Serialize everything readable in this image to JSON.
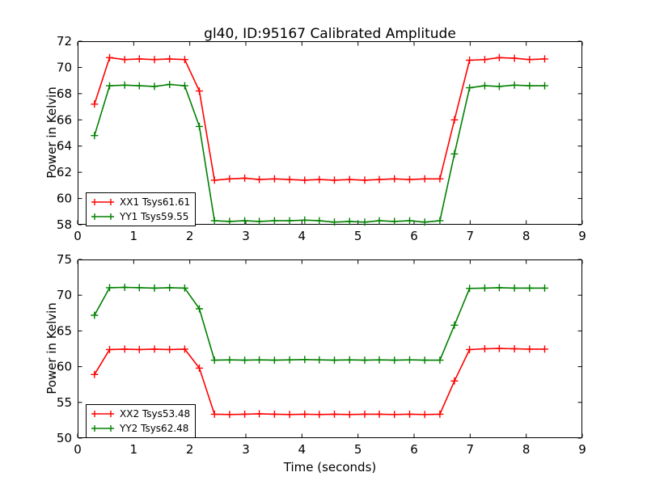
{
  "figure": {
    "title": "gl40, ID:95167 Calibrated Amplitude",
    "background": "#ffffff",
    "frame_color": "#000000"
  },
  "chart_data": [
    {
      "type": "line",
      "subplot": "top",
      "title": "",
      "xlabel": "",
      "ylabel": "Power in Kelvin",
      "xlim": [
        0,
        9
      ],
      "ylim": [
        58,
        72
      ],
      "xticks": [
        0,
        1,
        2,
        3,
        4,
        5,
        6,
        7,
        8,
        9
      ],
      "yticks": [
        58,
        60,
        62,
        64,
        66,
        68,
        70,
        72
      ],
      "grid": false,
      "legend_position": "lower-left",
      "x": [
        0.3,
        0.57,
        0.84,
        1.1,
        1.37,
        1.64,
        1.91,
        2.17,
        2.44,
        2.71,
        2.98,
        3.24,
        3.51,
        3.78,
        4.05,
        4.31,
        4.58,
        4.85,
        5.12,
        5.38,
        5.65,
        5.92,
        6.19,
        6.46,
        6.72,
        6.99,
        7.26,
        7.52,
        7.79,
        8.06,
        8.33
      ],
      "series": [
        {
          "name": "XX1 Tsys61.61",
          "color": "#ff0000",
          "marker": "plus",
          "values": [
            67.2,
            70.75,
            70.6,
            70.65,
            70.6,
            70.65,
            70.6,
            68.2,
            61.4,
            61.5,
            61.55,
            61.45,
            61.5,
            61.45,
            61.4,
            61.45,
            61.4,
            61.45,
            61.4,
            61.45,
            61.5,
            61.45,
            61.5,
            61.5,
            66.0,
            70.55,
            70.6,
            70.75,
            70.7,
            70.6,
            70.65
          ]
        },
        {
          "name": "YY1 Tsys59.55",
          "color": "#008000",
          "marker": "plus",
          "values": [
            64.8,
            68.6,
            68.65,
            68.6,
            68.55,
            68.7,
            68.6,
            65.5,
            58.3,
            58.25,
            58.3,
            58.25,
            58.3,
            58.3,
            58.35,
            58.3,
            58.2,
            58.25,
            58.2,
            58.3,
            58.25,
            58.3,
            58.2,
            58.3,
            63.4,
            68.45,
            68.6,
            68.55,
            68.65,
            68.6,
            68.6
          ]
        }
      ]
    },
    {
      "type": "line",
      "subplot": "bottom",
      "title": "",
      "xlabel": "Time (seconds)",
      "ylabel": "Power in Kelvin",
      "xlim": [
        0,
        9
      ],
      "ylim": [
        50,
        75
      ],
      "xticks": [
        0,
        1,
        2,
        3,
        4,
        5,
        6,
        7,
        8,
        9
      ],
      "yticks": [
        50,
        55,
        60,
        65,
        70,
        75
      ],
      "grid": false,
      "legend_position": "lower-left",
      "x": [
        0.3,
        0.57,
        0.84,
        1.1,
        1.37,
        1.64,
        1.91,
        2.17,
        2.44,
        2.71,
        2.98,
        3.24,
        3.51,
        3.78,
        4.05,
        4.31,
        4.58,
        4.85,
        5.12,
        5.38,
        5.65,
        5.92,
        6.19,
        6.46,
        6.72,
        6.99,
        7.26,
        7.52,
        7.79,
        8.06,
        8.33
      ],
      "series": [
        {
          "name": "XX2 Tsys53.48",
          "color": "#ff0000",
          "marker": "plus",
          "values": [
            58.9,
            62.4,
            62.45,
            62.4,
            62.45,
            62.4,
            62.45,
            59.8,
            53.35,
            53.3,
            53.35,
            53.4,
            53.35,
            53.3,
            53.35,
            53.3,
            53.35,
            53.3,
            53.35,
            53.35,
            53.3,
            53.35,
            53.3,
            53.35,
            58.0,
            62.4,
            62.5,
            62.55,
            62.5,
            62.45,
            62.45
          ]
        },
        {
          "name": "YY2 Tsys62.48",
          "color": "#008000",
          "marker": "plus",
          "values": [
            67.2,
            71.05,
            71.1,
            71.05,
            71.0,
            71.05,
            71.0,
            68.1,
            60.9,
            60.95,
            60.9,
            60.95,
            60.9,
            60.95,
            61.0,
            60.95,
            60.9,
            60.95,
            60.9,
            60.95,
            60.9,
            60.95,
            60.9,
            60.9,
            65.8,
            70.95,
            71.0,
            71.05,
            71.0,
            71.0,
            71.0
          ]
        }
      ]
    }
  ]
}
